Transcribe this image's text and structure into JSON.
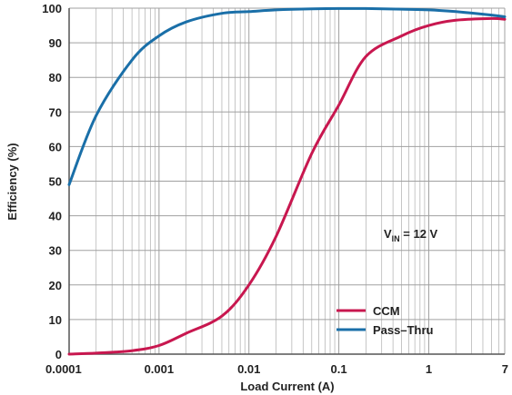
{
  "chart_data": {
    "type": "line",
    "title": "",
    "xlabel": "Load Current (A)",
    "ylabel": "Efficiency (%)",
    "xscale": "log",
    "xlim": [
      0.0001,
      7
    ],
    "ylim": [
      0,
      100
    ],
    "x_ticks": [
      {
        "value": 0.0001,
        "label": "0.0001"
      },
      {
        "value": 0.001,
        "label": "0.001"
      },
      {
        "value": 0.01,
        "label": "0.01"
      },
      {
        "value": 0.1,
        "label": "0.1"
      },
      {
        "value": 1,
        "label": "1"
      },
      {
        "value": 7,
        "label": "7"
      }
    ],
    "y_ticks": [
      0,
      10,
      20,
      30,
      40,
      50,
      60,
      70,
      80,
      90,
      100
    ],
    "grid": true,
    "legend_position": "bottom-right",
    "annotation": {
      "prefix": "V",
      "subscript": "IN",
      "suffix": " = 12 V"
    },
    "series": [
      {
        "name": "CCM",
        "color": "#c8174f",
        "x": [
          0.0001,
          0.0002,
          0.0005,
          0.001,
          0.002,
          0.005,
          0.01,
          0.02,
          0.05,
          0.1,
          0.2,
          0.5,
          1,
          2,
          5,
          7
        ],
        "y": [
          0,
          0.3,
          1,
          2.5,
          6,
          11,
          20,
          34,
          58,
          72,
          86,
          92,
          95,
          96.5,
          97,
          96.8
        ]
      },
      {
        "name": "Pass–Thru",
        "color": "#1a6fa8",
        "x": [
          0.0001,
          0.0002,
          0.0005,
          0.001,
          0.002,
          0.005,
          0.01,
          0.02,
          0.05,
          0.1,
          0.2,
          0.5,
          1,
          2,
          5,
          7
        ],
        "y": [
          49,
          69,
          85,
          92,
          96,
          98.5,
          99,
          99.5,
          99.8,
          99.9,
          99.9,
          99.7,
          99.5,
          99,
          98,
          97.5
        ]
      }
    ],
    "colors": {
      "grid": "#a0a0a0",
      "axis": "#555555"
    }
  }
}
